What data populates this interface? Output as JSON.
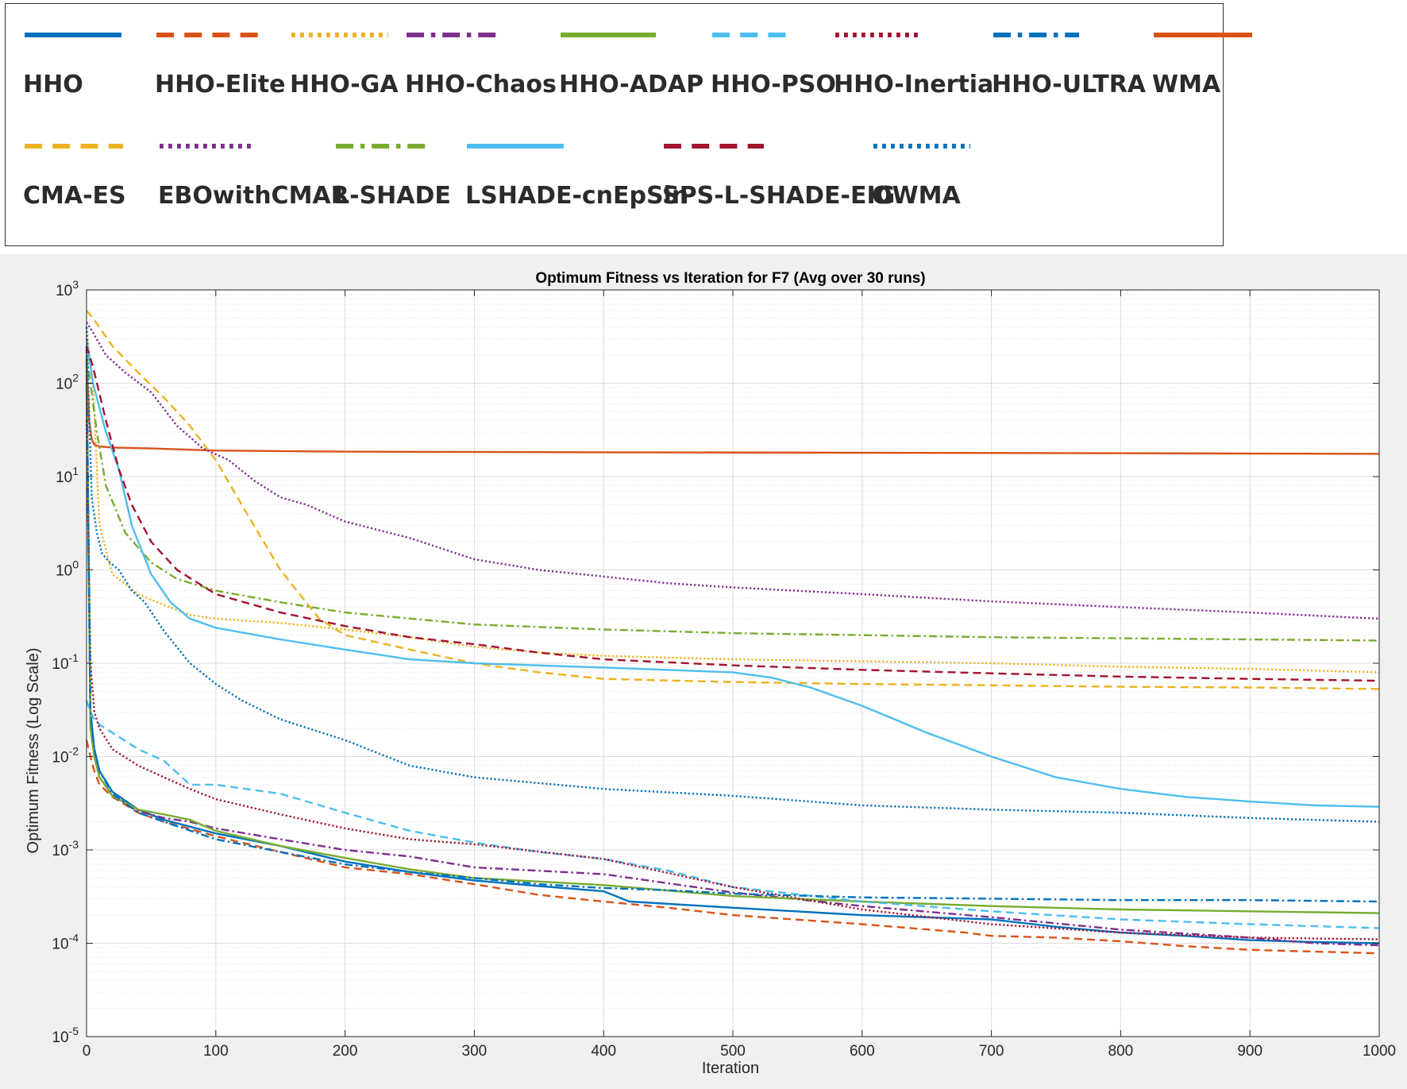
{
  "legend": [
    {
      "name": "HHO",
      "color": "#0072BD",
      "style": "solid"
    },
    {
      "name": "HHO-Elite",
      "color": "#D95319",
      "style": "dashed"
    },
    {
      "name": "HHO-GA",
      "color": "#EDB120",
      "style": "dotted"
    },
    {
      "name": "HHO-Chaos",
      "color": "#7E2F8E",
      "style": "dashdot"
    },
    {
      "name": "HHO-ADAP",
      "color": "#77AC30",
      "style": "solid"
    },
    {
      "name": "HHO-PSO",
      "color": "#4DBEEE",
      "style": "dashed"
    },
    {
      "name": "HHO-Inertia",
      "color": "#A2142F",
      "style": "dotted"
    },
    {
      "name": "HHO-ULTRA",
      "color": "#0072BD",
      "style": "dashdot"
    },
    {
      "name": "WMA",
      "color": "#D95319",
      "style": "solid"
    },
    {
      "name": "CMA-ES",
      "color": "#EDB120",
      "style": "dashed"
    },
    {
      "name": "EBOwithCMAR",
      "color": "#7E2F8E",
      "style": "dotted"
    },
    {
      "name": "L-SHADE",
      "color": "#77AC30",
      "style": "dashdot"
    },
    {
      "name": "LSHADE-cnEpSin",
      "color": "#4DBEEE",
      "style": "solid"
    },
    {
      "name": "SPS-L-SHADE-EIG",
      "color": "#A2142F",
      "style": "dashed"
    },
    {
      "name": "OWMA",
      "color": "#0072BD",
      "style": "dotted"
    }
  ],
  "chart_data": {
    "type": "line",
    "title": "Optimum Fitness vs Iteration for F7 (Avg over 30 runs)",
    "xlabel": "Iteration",
    "ylabel": "Optimum Fitness (Log Scale)",
    "xlim": [
      0,
      1000
    ],
    "ylim": [
      1e-05,
      1000
    ],
    "yscale": "log",
    "grid": true,
    "minor_grid": true,
    "xticks": [
      "0",
      "100",
      "200",
      "300",
      "400",
      "500",
      "600",
      "700",
      "800",
      "900",
      "1000"
    ],
    "yticks": [
      {
        "base": "10",
        "exp": "-5"
      },
      {
        "base": "10",
        "exp": "-4"
      },
      {
        "base": "10",
        "exp": "-3"
      },
      {
        "base": "10",
        "exp": "-2"
      },
      {
        "base": "10",
        "exp": "-1"
      },
      {
        "base": "10",
        "exp": "0"
      },
      {
        "base": "10",
        "exp": "1"
      },
      {
        "base": "10",
        "exp": "2"
      },
      {
        "base": "10",
        "exp": "3"
      }
    ],
    "series": [
      {
        "name": "HHO",
        "color": "#0072BD",
        "style": "solid",
        "x": [
          0,
          3,
          6,
          10,
          20,
          40,
          60,
          100,
          150,
          200,
          250,
          300,
          350,
          400,
          420,
          500,
          600,
          700,
          750,
          800,
          850,
          900,
          950,
          1000
        ],
        "y": [
          100,
          0.03,
          0.012,
          0.007,
          0.0042,
          0.0027,
          0.0021,
          0.0015,
          0.0011,
          0.00075,
          0.00058,
          0.00047,
          0.00041,
          0.00036,
          0.00028,
          0.00024,
          0.0002,
          0.00018,
          0.00015,
          0.00013,
          0.00012,
          0.000108,
          0.000103,
          0.0001
        ]
      },
      {
        "name": "HHO-Elite",
        "color": "#D95319",
        "style": "dashed",
        "x": [
          0,
          3,
          6,
          10,
          20,
          40,
          60,
          100,
          150,
          200,
          250,
          300,
          350,
          400,
          450,
          500,
          600,
          680,
          700,
          750,
          800,
          850,
          900,
          1000
        ],
        "y": [
          0.015,
          0.01,
          0.007,
          0.005,
          0.0037,
          0.0025,
          0.002,
          0.0014,
          0.00095,
          0.00065,
          0.00055,
          0.00043,
          0.00033,
          0.00028,
          0.00024,
          0.0002,
          0.00016,
          0.00013,
          0.00012,
          0.000115,
          0.000105,
          9.3e-05,
          8.5e-05,
          7.8e-05
        ]
      },
      {
        "name": "HHO-GA",
        "color": "#EDB120",
        "style": "dotted",
        "x": [
          0,
          5,
          10,
          20,
          40,
          60,
          80,
          100,
          150,
          200,
          250,
          300,
          350,
          400,
          500,
          600,
          700,
          800,
          900,
          1000
        ],
        "y": [
          400,
          100,
          3,
          0.9,
          0.55,
          0.42,
          0.33,
          0.3,
          0.27,
          0.23,
          0.19,
          0.15,
          0.13,
          0.12,
          0.11,
          0.105,
          0.1,
          0.092,
          0.087,
          0.08
        ]
      },
      {
        "name": "HHO-Chaos",
        "color": "#7E2F8E",
        "style": "dashdot",
        "x": [
          0,
          3,
          6,
          10,
          20,
          40,
          60,
          80,
          100,
          150,
          200,
          250,
          300,
          400,
          500,
          600,
          700,
          800,
          900,
          950,
          1000
        ],
        "y": [
          250,
          0.02,
          0.01,
          0.006,
          0.0038,
          0.0026,
          0.0022,
          0.002,
          0.0017,
          0.0013,
          0.001,
          0.00085,
          0.00065,
          0.00055,
          0.00035,
          0.00025,
          0.00019,
          0.00014,
          0.000115,
          0.0001,
          9.5e-05
        ]
      },
      {
        "name": "HHO-ADAP",
        "color": "#77AC30",
        "style": "solid",
        "x": [
          0,
          3,
          6,
          10,
          20,
          40,
          60,
          80,
          100,
          150,
          200,
          250,
          300,
          400,
          500,
          600,
          700,
          800,
          900,
          1000
        ],
        "y": [
          150,
          0.02,
          0.01,
          0.006,
          0.0038,
          0.0027,
          0.0024,
          0.0021,
          0.0016,
          0.0011,
          0.00082,
          0.00062,
          0.0005,
          0.00042,
          0.00032,
          0.00028,
          0.00025,
          0.00023,
          0.00022,
          0.00021
        ]
      },
      {
        "name": "HHO-PSO",
        "color": "#4DBEEE",
        "style": "dashed",
        "x": [
          0,
          3,
          6,
          10,
          20,
          40,
          60,
          80,
          100,
          150,
          200,
          250,
          300,
          350,
          400,
          450,
          500,
          600,
          700,
          800,
          900,
          1000
        ],
        "y": [
          0.04,
          0.03,
          0.025,
          0.022,
          0.018,
          0.012,
          0.009,
          0.005,
          0.005,
          0.004,
          0.0025,
          0.0016,
          0.0012,
          0.00095,
          0.0008,
          0.0006,
          0.0004,
          0.00028,
          0.00022,
          0.00018,
          0.00016,
          0.000145
        ]
      },
      {
        "name": "HHO-Inertia",
        "color": "#A2142F",
        "style": "dotted",
        "x": [
          0,
          3,
          6,
          10,
          20,
          40,
          60,
          80,
          100,
          150,
          200,
          250,
          300,
          400,
          500,
          600,
          700,
          800,
          900,
          1000
        ],
        "y": [
          40,
          0.1,
          0.03,
          0.02,
          0.012,
          0.008,
          0.006,
          0.0045,
          0.0035,
          0.0024,
          0.0017,
          0.0013,
          0.00115,
          0.0008,
          0.0004,
          0.00023,
          0.00016,
          0.00013,
          0.000115,
          0.00011
        ]
      },
      {
        "name": "HHO-ULTRA",
        "color": "#0072BD",
        "style": "dashdot",
        "x": [
          0,
          3,
          6,
          10,
          20,
          40,
          60,
          100,
          150,
          200,
          250,
          300,
          350,
          400,
          450,
          500,
          600,
          700,
          800,
          900,
          1000
        ],
        "y": [
          180,
          0.03,
          0.012,
          0.007,
          0.004,
          0.0025,
          0.002,
          0.0013,
          0.00095,
          0.0007,
          0.00058,
          0.0005,
          0.00043,
          0.00039,
          0.00037,
          0.00034,
          0.00031,
          0.0003,
          0.00029,
          0.00029,
          0.00028
        ]
      },
      {
        "name": "WMA",
        "color": "#D95319",
        "style": "solid",
        "x": [
          0,
          2,
          4,
          6,
          10,
          20,
          50,
          100,
          200,
          400,
          600,
          800,
          1000
        ],
        "y": [
          200,
          40,
          25,
          22,
          21,
          20.5,
          20,
          19,
          18.5,
          18.2,
          18,
          17.8,
          17.5
        ]
      },
      {
        "name": "CMA-ES",
        "color": "#EDB120",
        "style": "dashed",
        "x": [
          0,
          5,
          20,
          40,
          60,
          80,
          100,
          120,
          150,
          180,
          200,
          250,
          300,
          350,
          400,
          500,
          600,
          700,
          800,
          900,
          1000
        ],
        "y": [
          600,
          500,
          250,
          130,
          70,
          35,
          15,
          5,
          1,
          0.3,
          0.2,
          0.14,
          0.1,
          0.08,
          0.068,
          0.063,
          0.06,
          0.058,
          0.056,
          0.055,
          0.053
        ]
      },
      {
        "name": "EBOwithCMAR",
        "color": "#7E2F8E",
        "style": "dotted",
        "x": [
          0,
          5,
          15,
          30,
          50,
          70,
          90,
          110,
          130,
          150,
          170,
          200,
          250,
          300,
          350,
          400,
          450,
          500,
          600,
          700,
          800,
          900,
          1000
        ],
        "y": [
          450,
          350,
          200,
          130,
          80,
          35,
          20,
          15,
          9,
          6,
          5,
          3.3,
          2.2,
          1.3,
          1,
          0.85,
          0.72,
          0.65,
          0.55,
          0.46,
          0.4,
          0.35,
          0.3
        ]
      },
      {
        "name": "L-SHADE",
        "color": "#77AC30",
        "style": "dashdot",
        "x": [
          0,
          3,
          8,
          15,
          30,
          50,
          70,
          100,
          150,
          200,
          300,
          400,
          500,
          600,
          700,
          800,
          900,
          1000
        ],
        "y": [
          200,
          100,
          30,
          8,
          2.5,
          1.2,
          0.8,
          0.6,
          0.45,
          0.35,
          0.26,
          0.23,
          0.21,
          0.2,
          0.19,
          0.185,
          0.18,
          0.175
        ]
      },
      {
        "name": "LSHADE-cnEpSin",
        "color": "#4DBEEE",
        "style": "solid",
        "x": [
          0,
          5,
          15,
          25,
          35,
          50,
          65,
          80,
          100,
          150,
          200,
          250,
          300,
          400,
          500,
          530,
          560,
          600,
          650,
          700,
          750,
          800,
          850,
          900,
          950,
          1000
        ],
        "y": [
          300,
          100,
          30,
          12,
          3,
          0.9,
          0.45,
          0.3,
          0.24,
          0.18,
          0.14,
          0.11,
          0.1,
          0.09,
          0.08,
          0.07,
          0.055,
          0.035,
          0.018,
          0.01,
          0.006,
          0.0045,
          0.0037,
          0.0033,
          0.003,
          0.0029
        ]
      },
      {
        "name": "SPS-L-SHADE-EIG",
        "color": "#A2142F",
        "style": "dashed",
        "x": [
          0,
          5,
          15,
          25,
          35,
          50,
          70,
          100,
          150,
          200,
          250,
          300,
          350,
          400,
          500,
          600,
          700,
          800,
          900,
          1000
        ],
        "y": [
          250,
          150,
          40,
          12,
          5,
          2,
          1,
          0.55,
          0.35,
          0.25,
          0.19,
          0.16,
          0.13,
          0.11,
          0.095,
          0.085,
          0.078,
          0.072,
          0.068,
          0.065
        ]
      },
      {
        "name": "OWMA",
        "color": "#0072BD",
        "style": "dotted",
        "x": [
          0,
          4,
          8,
          12,
          18,
          25,
          35,
          45,
          60,
          80,
          100,
          120,
          150,
          200,
          250,
          300,
          400,
          500,
          600,
          700,
          800,
          900,
          1000
        ],
        "y": [
          400,
          6,
          2.5,
          1.5,
          1.2,
          1,
          0.6,
          0.45,
          0.22,
          0.1,
          0.06,
          0.04,
          0.025,
          0.015,
          0.008,
          0.006,
          0.0045,
          0.0038,
          0.003,
          0.0027,
          0.0025,
          0.0022,
          0.002
        ]
      }
    ]
  }
}
